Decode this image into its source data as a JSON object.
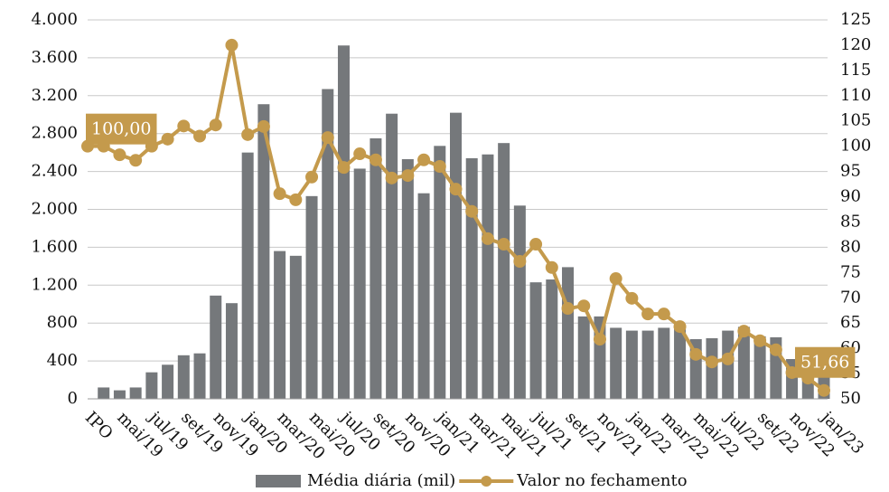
{
  "chart_data": {
    "type": "bar-line",
    "categories": [
      "IPO",
      null,
      "mai/19",
      null,
      "jul/19",
      null,
      "set/19",
      null,
      "nov/19",
      null,
      "jan/20",
      null,
      "mar/20",
      null,
      "mai/20",
      null,
      "jul/20",
      null,
      "set/20",
      null,
      "nov/20",
      null,
      "jan/21",
      null,
      "mar/21",
      null,
      "mai/21",
      null,
      "jul/21",
      null,
      "set/21",
      null,
      "nov/21",
      null,
      "jan/22",
      null,
      "mar/22",
      null,
      "mai/22",
      null,
      "jul/22",
      null,
      "set/22",
      null,
      "nov/22",
      null,
      "jan/23"
    ],
    "series": [
      {
        "name": "Média diária (mil)",
        "type": "bar",
        "axis": "y",
        "color": "#75787b",
        "values": [
          null,
          120,
          90,
          120,
          280,
          360,
          460,
          480,
          1090,
          1010,
          2600,
          3110,
          1560,
          1510,
          2140,
          3270,
          3730,
          2430,
          2750,
          3010,
          2530,
          2170,
          2670,
          3020,
          2540,
          2580,
          2700,
          2040,
          1230,
          1260,
          1390,
          870,
          870,
          750,
          720,
          720,
          750,
          760,
          630,
          640,
          720,
          760,
          660,
          650,
          420,
          330,
          250
        ]
      },
      {
        "name": "Valor no fechamento",
        "type": "line",
        "axis": "y2",
        "color": "#c49a4c",
        "values": [
          100,
          100,
          98.3,
          97.2,
          100,
          101.4,
          104,
          102,
          104.2,
          120,
          102.3,
          103.9,
          90.6,
          89.4,
          93.9,
          101.7,
          95.8,
          98.5,
          97.3,
          93.7,
          94.2,
          97.3,
          96,
          91.5,
          87.1,
          81.7,
          80.6,
          77.2,
          80.6,
          76,
          67.9,
          68.4,
          61.8,
          73.8,
          69.9,
          66.8,
          66.8,
          64.3,
          58.8,
          57.3,
          57.9,
          63.4,
          61.5,
          59.7,
          55.2,
          54.1,
          51.66
        ]
      }
    ],
    "annotations": [
      {
        "text": "100,00",
        "index": 0
      },
      {
        "text": "51,66",
        "index": 46
      }
    ],
    "ylim": [
      0,
      4000
    ],
    "yticks": [
      0,
      400,
      800,
      {
        "value": 1200,
        "label": "1.200"
      },
      {
        "value": 1600,
        "label": "1.600"
      },
      {
        "value": 2000,
        "label": "2.000"
      },
      {
        "value": 2400,
        "label": "2.400"
      },
      {
        "value": 2800,
        "label": "2.800"
      },
      {
        "value": 3200,
        "label": "3.200"
      },
      {
        "value": 3600,
        "label": "3.600"
      },
      {
        "value": 4000,
        "label": "4.000"
      }
    ],
    "y2lim": [
      50,
      125
    ],
    "y2ticks": [
      50,
      55,
      60,
      65,
      70,
      75,
      80,
      85,
      90,
      95,
      100,
      105,
      110,
      115,
      120,
      125
    ],
    "grid": true,
    "legend": "bottom"
  }
}
